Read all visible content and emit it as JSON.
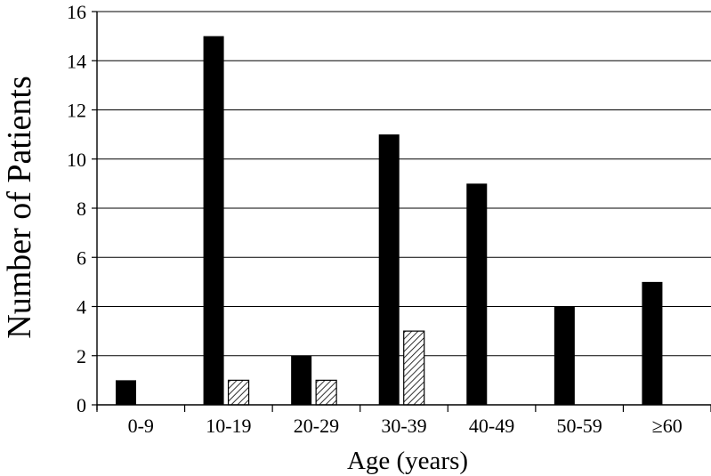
{
  "chart_data": {
    "type": "bar",
    "categories": [
      "0-9",
      "10-19",
      "20-29",
      "30-39",
      "40-49",
      "50-59",
      "≥60"
    ],
    "series": [
      {
        "values": [
          1,
          15,
          2,
          11,
          9,
          4,
          5
        ],
        "color": "#000000",
        "fill": "solid"
      },
      {
        "values": [
          0,
          1,
          1,
          3,
          0,
          0,
          0
        ],
        "color": "#000000",
        "fill": "hatched"
      }
    ],
    "xlabel": "Age (years)",
    "ylabel": "Number of Patients",
    "ylim": [
      0,
      16
    ],
    "yticks": [
      0,
      2,
      4,
      6,
      8,
      10,
      12,
      14,
      16
    ],
    "grid": true
  }
}
